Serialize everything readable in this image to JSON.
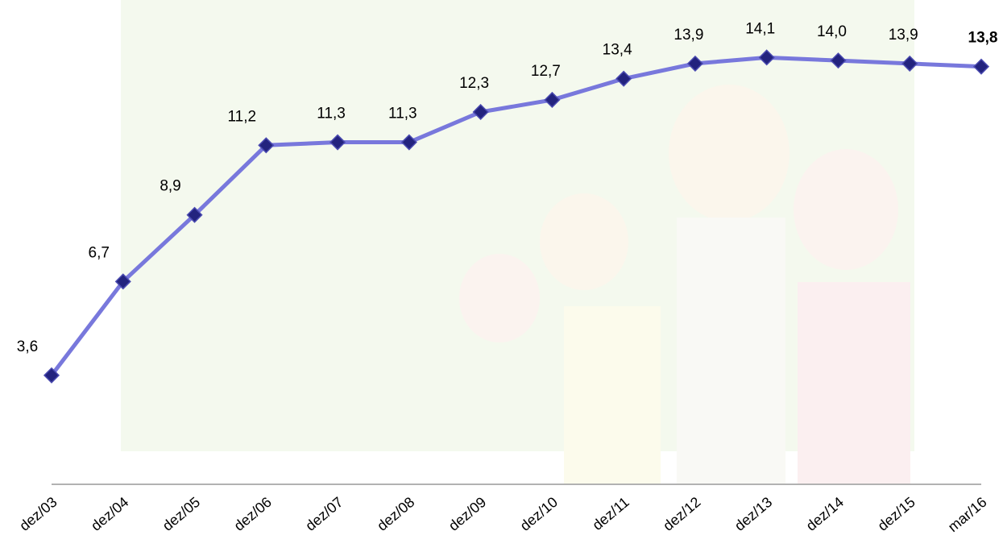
{
  "chart_data": {
    "type": "line",
    "categories": [
      "dez/03",
      "dez/04",
      "dez/05",
      "dez/06",
      "dez/07",
      "dez/08",
      "dez/09",
      "dez/10",
      "dez/11",
      "dez/12",
      "dez/13",
      "dez/14",
      "dez/15",
      "mar/16"
    ],
    "values": [
      3.6,
      6.7,
      8.9,
      11.2,
      11.3,
      11.3,
      12.3,
      12.7,
      13.4,
      13.9,
      14.1,
      14.0,
      13.9,
      13.8
    ],
    "value_labels": [
      "3,6",
      "6,7",
      "8,9",
      "11,2",
      "11,3",
      "11,3",
      "12,3",
      "12,7",
      "13,4",
      "13,9",
      "14,1",
      "14,0",
      "13,9",
      "13,8"
    ],
    "color": "#7878dc",
    "marker_color": "#23237e",
    "ylim": [
      0,
      16
    ]
  }
}
